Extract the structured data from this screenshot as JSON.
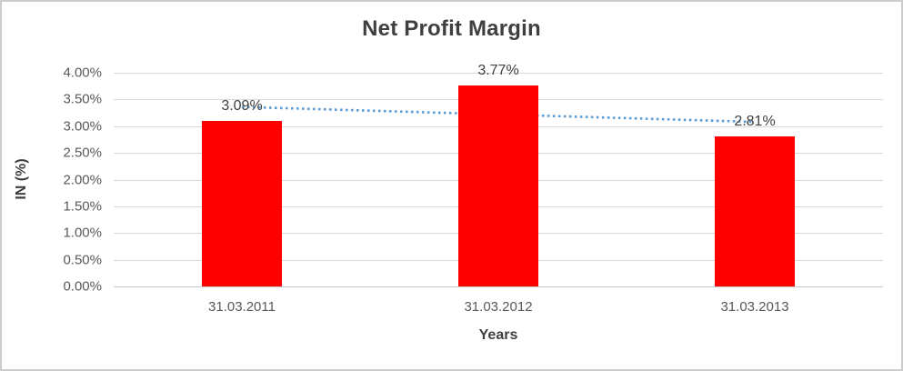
{
  "chart_data": {
    "type": "bar",
    "title": "Net Profit Margin",
    "categories": [
      "31.03.2011",
      "31.03.2012",
      "31.03.2013"
    ],
    "values": [
      3.09,
      3.77,
      2.81
    ],
    "data_labels": [
      "3.09%",
      "3.77%",
      "2.81%"
    ],
    "xlabel": "Years",
    "ylabel": "IN (%)",
    "ylim": [
      0,
      4
    ],
    "ytick_step": 0.5,
    "ytick_labels": [
      "0.00%",
      "0.50%",
      "1.00%",
      "1.50%",
      "2.00%",
      "2.50%",
      "3.00%",
      "3.50%",
      "4.00%"
    ],
    "grid": true,
    "legend": "none",
    "bar_color": "#FF0000",
    "gridline_color": "#d9d9d9",
    "trendline": {
      "type": "linear",
      "style": "dotted",
      "color": "#5B9BD5",
      "start_value": 3.36,
      "end_value": 3.08
    }
  }
}
